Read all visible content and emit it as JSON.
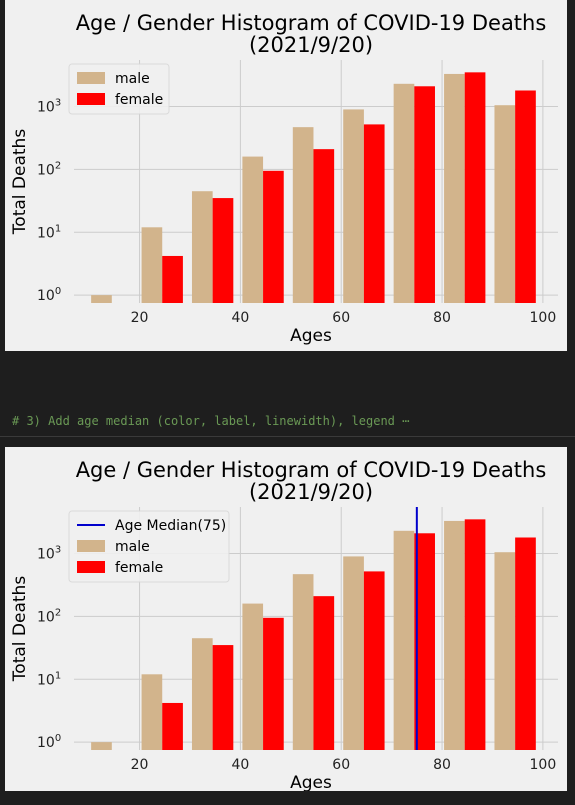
{
  "code_comment": "# 3) Add age median (color, label, linewidth), legend",
  "code_ellipsis": "⋯",
  "colors": {
    "male": "#d2b48c",
    "female": "#ff0000",
    "median": "#0000cc",
    "background": "#f0f0f0",
    "grid": "#cccccc"
  },
  "chart_data": [
    {
      "type": "bar",
      "title": "Age / Gender Histogram of COVID-19 Deaths",
      "subtitle": "(2021/9/20)",
      "xlabel": "Ages",
      "ylabel": "Total Deaths",
      "yscale": "log",
      "xlim": [
        7,
        103
      ],
      "ylim": [
        0.75,
        5500
      ],
      "xticks": [
        "20",
        "40",
        "60",
        "80",
        "100"
      ],
      "yticks": [
        "10^0",
        "10^1",
        "10^2",
        "10^3"
      ],
      "grid": true,
      "legend_position": "top-left",
      "categories_age_start": [
        10,
        20,
        30,
        40,
        50,
        60,
        70,
        80,
        90
      ],
      "series": [
        {
          "name": "male",
          "values": [
            1,
            12,
            45,
            160,
            470,
            900,
            2300,
            3300,
            1050
          ]
        },
        {
          "name": "female",
          "values": [
            null,
            4.2,
            35,
            95,
            210,
            520,
            2100,
            3500,
            1800
          ]
        }
      ]
    },
    {
      "type": "bar",
      "title": "Age / Gender Histogram of COVID-19 Deaths",
      "subtitle": "(2021/9/20)",
      "xlabel": "Ages",
      "ylabel": "Total Deaths",
      "yscale": "log",
      "xlim": [
        7,
        103
      ],
      "ylim": [
        0.75,
        5500
      ],
      "xticks": [
        "20",
        "40",
        "60",
        "80",
        "100"
      ],
      "yticks": [
        "10^0",
        "10^1",
        "10^2",
        "10^3"
      ],
      "grid": true,
      "legend_position": "top-left",
      "categories_age_start": [
        10,
        20,
        30,
        40,
        50,
        60,
        70,
        80,
        90
      ],
      "median": {
        "name": "Age Median(75)",
        "value": 75
      },
      "series": [
        {
          "name": "male",
          "values": [
            1,
            12,
            45,
            160,
            470,
            900,
            2300,
            3300,
            1050
          ]
        },
        {
          "name": "female",
          "values": [
            null,
            4.2,
            35,
            95,
            210,
            520,
            2100,
            3500,
            1800
          ]
        }
      ]
    }
  ]
}
